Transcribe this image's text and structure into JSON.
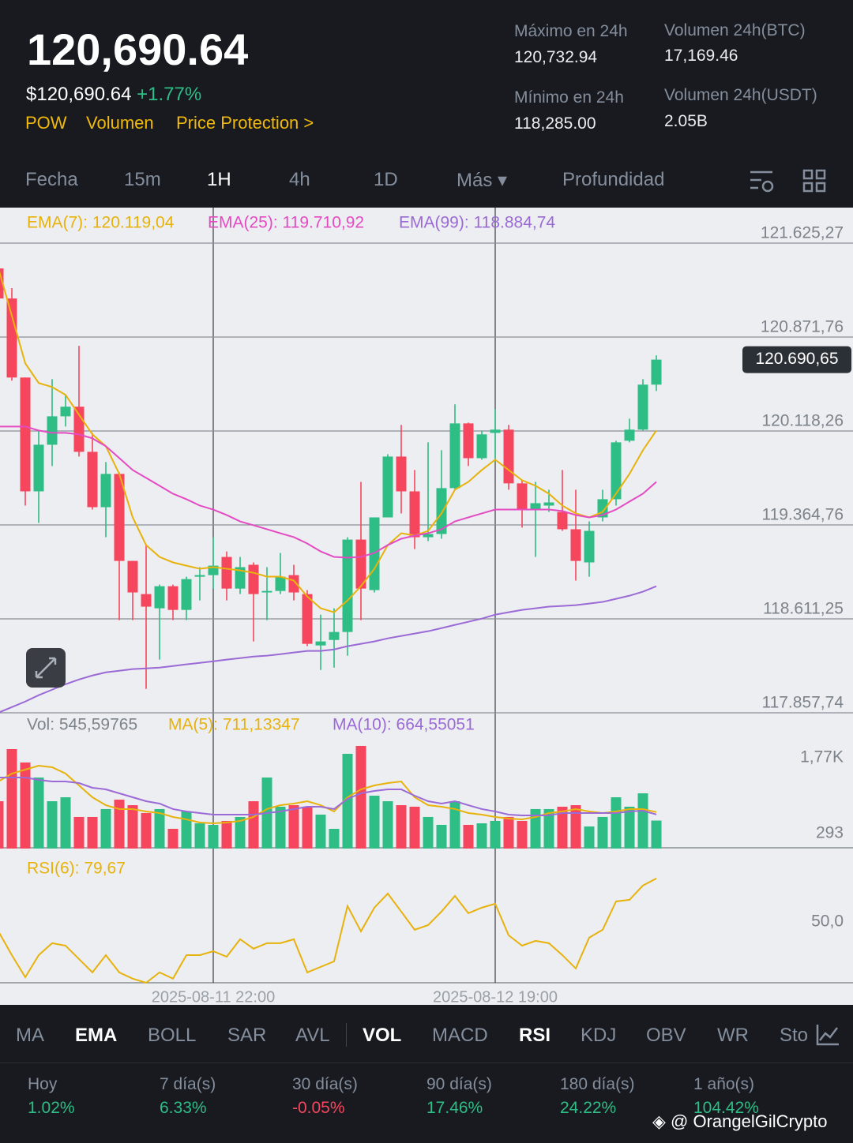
{
  "header": {
    "price": "120,690.64",
    "usd_price": "$120,690.64",
    "change": "+1.77%",
    "tags": [
      "POW",
      "Volumen",
      "Price Protection >"
    ],
    "stats": [
      {
        "label": "Máximo en 24h",
        "value": "120,732.94"
      },
      {
        "label": "Volumen 24h(BTC)",
        "value": "17,169.46"
      },
      {
        "label": "Mínimo en 24h",
        "value": "118,285.00"
      },
      {
        "label": "Volumen 24h(USDT)",
        "value": "2.05B"
      }
    ]
  },
  "tabs": {
    "items": [
      "Fecha",
      "15m",
      "1H",
      "4h",
      "1D",
      "Más ▾",
      "Profundidad"
    ],
    "active": "1H"
  },
  "chart_data": [
    {
      "type": "candlestick",
      "up_color": "#2ebd85",
      "down_color": "#f6465d",
      "grid": true,
      "categories": [
        null,
        null,
        null,
        null,
        null,
        null,
        null,
        null,
        null,
        null,
        null,
        null,
        null,
        null,
        null,
        null,
        "2025-08-11 22:00",
        null,
        null,
        null,
        null,
        null,
        null,
        null,
        null,
        null,
        null,
        null,
        null,
        null,
        null,
        null,
        null,
        null,
        null,
        null,
        null,
        "2025-08-12 19:00",
        null,
        null,
        null,
        null,
        null,
        null,
        null,
        null,
        null,
        null,
        null,
        null
      ],
      "open": [
        121422,
        121181,
        120547,
        119634,
        120008,
        120236,
        120313,
        119951,
        119507,
        119774,
        119076,
        118810,
        118696,
        118873,
        118683,
        118949,
        118962,
        119108,
        118854,
        119045,
        118823,
        118835,
        118962,
        118810,
        118398,
        118442,
        118506,
        119247,
        118842,
        119425,
        119913,
        119634,
        119266,
        119292,
        119660,
        120179,
        119900,
        120103,
        120129,
        119698,
        119488,
        119520,
        119469,
        119330,
        119064,
        119425,
        119571,
        120040,
        120129,
        120490
      ],
      "high": [
        121454,
        121264,
        120547,
        120122,
        120534,
        120408,
        120801,
        120103,
        119869,
        119786,
        119076,
        119203,
        118886,
        118886,
        118949,
        119026,
        119266,
        119152,
        119108,
        119064,
        119026,
        119140,
        119045,
        118842,
        118645,
        118696,
        119266,
        119710,
        119425,
        119932,
        120167,
        119805,
        120027,
        119964,
        120332,
        120186,
        120122,
        120294,
        120167,
        119723,
        119710,
        119647,
        119805,
        119647,
        119393,
        119647,
        120040,
        120217,
        120534,
        120725
      ],
      "low": [
        121168,
        120522,
        119520,
        119381,
        119837,
        120154,
        119913,
        119488,
        119266,
        118601,
        118601,
        118049,
        118284,
        118601,
        118601,
        118759,
        118854,
        118759,
        118810,
        118430,
        118601,
        118810,
        118759,
        118392,
        118201,
        118220,
        118315,
        118601,
        118823,
        119425,
        119457,
        119171,
        119235,
        119254,
        119647,
        119837,
        119888,
        119869,
        119647,
        119343,
        119108,
        119469,
        119317,
        118918,
        118949,
        119393,
        119520,
        120027,
        120122,
        120439
      ],
      "close": [
        121181,
        120547,
        119634,
        120008,
        120236,
        120313,
        119951,
        119507,
        119774,
        119076,
        118823,
        118709,
        118873,
        118683,
        118930,
        118962,
        119038,
        118854,
        119026,
        118810,
        118835,
        118949,
        118823,
        118411,
        118430,
        118506,
        119247,
        118854,
        119425,
        119913,
        119634,
        119266,
        119292,
        119660,
        120179,
        119900,
        120091,
        120129,
        119698,
        119488,
        119539,
        119545,
        119330,
        119076,
        119317,
        119571,
        120027,
        120129,
        120490,
        120690.65
      ],
      "series": [
        {
          "name": "EMA(7): 120.119,04",
          "color": "#e8b20c",
          "values": [
            121422,
            121042,
            120661,
            120503,
            120471,
            120408,
            120249,
            120091,
            119996,
            119774,
            119425,
            119203,
            119108,
            119064,
            119038,
            119013,
            119026,
            119013,
            119000,
            118981,
            118950,
            118950,
            118918,
            118791,
            118696,
            118664,
            118759,
            118873,
            119013,
            119203,
            119298,
            119279,
            119317,
            119457,
            119647,
            119710,
            119805,
            119888,
            119805,
            119723,
            119679,
            119615,
            119520,
            119457,
            119425,
            119469,
            119615,
            119774,
            119964,
            120122
          ]
        },
        {
          "name": "EMA(25): 119.710,92",
          "color": "#e44bc3",
          "values": [
            120154,
            120154,
            120154,
            120122,
            120103,
            120103,
            120091,
            120059,
            119996,
            119901,
            119805,
            119742,
            119679,
            119615,
            119571,
            119520,
            119488,
            119444,
            119393,
            119362,
            119330,
            119298,
            119267,
            119216,
            119152,
            119108,
            119102,
            119108,
            119140,
            119203,
            119254,
            119279,
            119298,
            119330,
            119393,
            119425,
            119457,
            119488,
            119488,
            119488,
            119488,
            119488,
            119476,
            119444,
            119425,
            119444,
            119488,
            119552,
            119615,
            119710
          ]
        },
        {
          "name": "EMA(99): 118.884,74",
          "color": "#9b6ad6",
          "values": [
            117859,
            117903,
            117948,
            117999,
            118043,
            118087,
            118125,
            118157,
            118182,
            118195,
            118208,
            118214,
            118220,
            118233,
            118246,
            118258,
            118271,
            118284,
            118296,
            118309,
            118316,
            118328,
            118341,
            118354,
            118354,
            118366,
            118392,
            118411,
            118430,
            118455,
            118474,
            118493,
            118512,
            118537,
            118563,
            118588,
            118613,
            118645,
            118664,
            118683,
            118696,
            118709,
            118715,
            118721,
            118734,
            118747,
            118772,
            118797,
            118829,
            118873
          ]
        }
      ],
      "last_price": 120690.65,
      "last_price_label": "120.690,65",
      "ylim": [
        117857.74,
        121910
      ],
      "yticks": [
        {
          "value": 121625.27,
          "label": "121.625,27"
        },
        {
          "value": 120871.76,
          "label": "120.871,76"
        },
        {
          "value": 120118.26,
          "label": "120.118,26"
        },
        {
          "value": 119364.76,
          "label": "119.364,76"
        },
        {
          "value": 118611.25,
          "label": "118.611,25"
        },
        {
          "value": 117857.74,
          "label": "117.857,74"
        }
      ]
    },
    {
      "type": "bar",
      "title": "Vol: 545,59765",
      "values": [
        923,
        1939,
        1678,
        1385,
        923,
        1000,
        616,
        616,
        770,
        954,
        846,
        693,
        770,
        385,
        723,
        492,
        462,
        539,
        616,
        923,
        1385,
        816,
        846,
        816,
        662,
        385,
        1847,
        2001,
        1031,
        923,
        846,
        816,
        616,
        462,
        923,
        462,
        492,
        539,
        616,
        539,
        770,
        770,
        816,
        846,
        431,
        616,
        1000,
        816,
        1077,
        546
      ],
      "series": [
        {
          "name": "MA(5): 711,13347",
          "color": "#e8b20c",
          "values": [
            1308,
            1462,
            1539,
            1616,
            1585,
            1462,
            1231,
            1000,
            846,
            770,
            770,
            723,
            693,
            616,
            569,
            508,
            492,
            508,
            539,
            616,
            770,
            846,
            877,
            923,
            846,
            723,
            1000,
            1154,
            1231,
            1277,
            1308,
            1000,
            846,
            816,
            770,
            693,
            662,
            616,
            585,
            569,
            616,
            693,
            723,
            770,
            723,
            693,
            723,
            770,
            770,
            711
          ]
        },
        {
          "name": "MA(10): 664,55051",
          "color": "#9b6ad6",
          "values": [
            1385,
            1385,
            1385,
            1339,
            1308,
            1308,
            1277,
            1185,
            1154,
            1077,
            1000,
            923,
            877,
            770,
            723,
            693,
            662,
            662,
            662,
            662,
            693,
            723,
            770,
            816,
            816,
            770,
            970,
            1077,
            1123,
            1154,
            1154,
            1031,
            923,
            877,
            923,
            846,
            770,
            723,
            662,
            646,
            646,
            646,
            693,
            693,
            693,
            693,
            693,
            723,
            739,
            665
          ]
        }
      ],
      "ylim": [
        0,
        2616
      ],
      "yticks": [
        {
          "value": 1770,
          "label": "1,77K"
        },
        293
      ]
    },
    {
      "type": "line",
      "series": [
        {
          "name": "RSI(6): 79,67",
          "color": "#e8b20c",
          "values": [
            50,
            36.7,
            24.3,
            36.7,
            43.4,
            42.0,
            34.5,
            27.0,
            36.7,
            27.0,
            23.5,
            21.2,
            27.0,
            23.5,
            36.7,
            36.7,
            38.9,
            35.8,
            45.6,
            40.3,
            43.4,
            43.4,
            45.6,
            27.0,
            30.1,
            33.2,
            64.2,
            50,
            63.3,
            71.2,
            61.1,
            50.9,
            53.5,
            61.1,
            69.9,
            60.2,
            63.3,
            65.5,
            47.8,
            42.0,
            44.7,
            43.4,
            36.7,
            29.2,
            46.5,
            50.9,
            66.8,
            67.7,
            75.7,
            79.67
          ]
        }
      ],
      "ylim": [
        21.2,
        92
      ],
      "yticks": [
        {
          "value": 50,
          "label": "50,0"
        }
      ]
    }
  ],
  "indicators": {
    "items": [
      "MA",
      "EMA",
      "BOLL",
      "SAR",
      "AVL",
      "VOL",
      "MACD",
      "RSI",
      "KDJ",
      "OBV",
      "WR",
      "Sto"
    ],
    "active": [
      "EMA",
      "VOL",
      "RSI"
    ]
  },
  "performance": [
    {
      "label": "Hoy",
      "value": "1.02%",
      "color": "#2ebd85"
    },
    {
      "label": "7 día(s)",
      "value": "6.33%",
      "color": "#2ebd85"
    },
    {
      "label": "30 día(s)",
      "value": "-0.05%",
      "color": "#f6465d"
    },
    {
      "label": "90 día(s)",
      "value": "17.46%",
      "color": "#2ebd85"
    },
    {
      "label": "180 día(s)",
      "value": "24.22%",
      "color": "#2ebd85"
    },
    {
      "label": "1 año(s)",
      "value": "104.42%",
      "color": "#2ebd85"
    }
  ],
  "watermark": "@ OrangelGilCrypto"
}
